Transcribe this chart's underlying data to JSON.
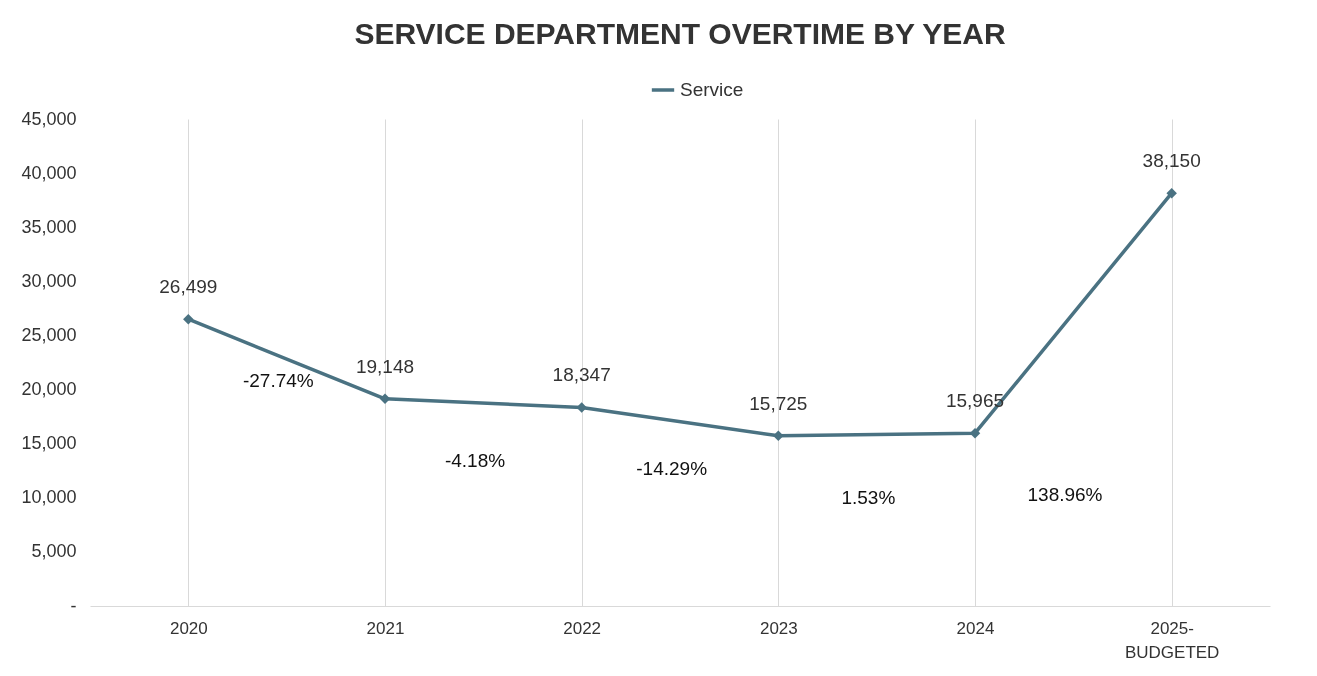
{
  "chart_data": {
    "type": "line",
    "title": "SERVICE DEPARTMENT OVERTIME BY YEAR",
    "categories": [
      "2020",
      "2021",
      "2022",
      "2023",
      "2024",
      "2025-BUDGETED"
    ],
    "series": [
      {
        "name": "Service",
        "color": "#4a7282",
        "values": [
          26499,
          19148,
          18347,
          15725,
          15965,
          38150
        ],
        "value_labels": [
          "26,499",
          "19,148",
          "18,347",
          "15,725",
          "15,965",
          "38,150"
        ]
      }
    ],
    "ylim": [
      0,
      45000
    ],
    "yticks": [
      {
        "value": 0,
        "label": "-"
      },
      {
        "value": 5000,
        "label": "5,000"
      },
      {
        "value": 10000,
        "label": "10,000"
      },
      {
        "value": 15000,
        "label": "15,000"
      },
      {
        "value": 20000,
        "label": "20,000"
      },
      {
        "value": 25000,
        "label": "25,000"
      },
      {
        "value": 30000,
        "label": "30,000"
      },
      {
        "value": 35000,
        "label": "35,000"
      },
      {
        "value": 40000,
        "label": "40,000"
      },
      {
        "value": 45000,
        "label": "45,000"
      }
    ],
    "annotations": [
      "-27.74%",
      "-4.18%",
      "-14.29%",
      "1.53%",
      "138.96%"
    ],
    "grid": "x",
    "legend": "top",
    "marker": "diamond",
    "line_style": "solid"
  }
}
